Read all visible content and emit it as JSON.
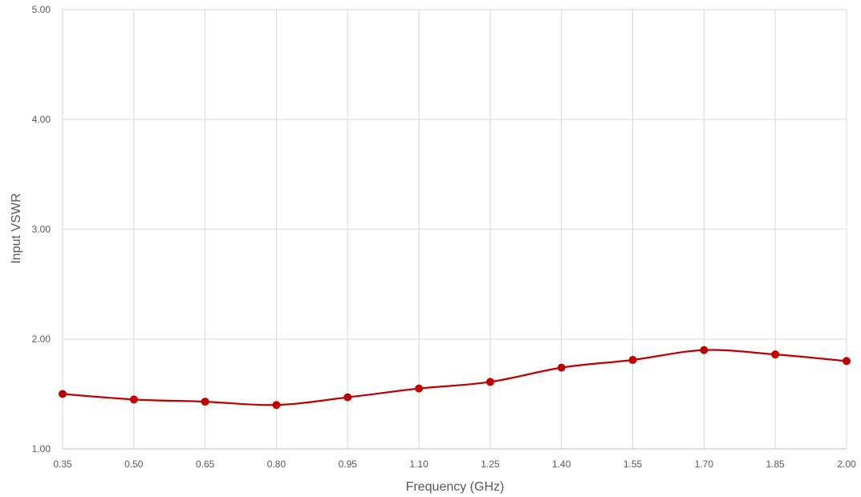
{
  "chart_data": {
    "type": "line",
    "title": "",
    "xlabel": "Frequency (GHz)",
    "ylabel": "Input VSWR",
    "x_tick_labels": [
      "0.35",
      "0.50",
      "0.65",
      "0.80",
      "0.95",
      "1.10",
      "1.25",
      "1.40",
      "1.55",
      "1.70",
      "1.85",
      "2.00"
    ],
    "y_tick_labels": [
      "1.00",
      "2.00",
      "3.00",
      "4.00",
      "5.00"
    ],
    "xlim": [
      0.35,
      2.0
    ],
    "ylim": [
      1.0,
      5.0
    ],
    "grid": true,
    "smooth": true,
    "series": [
      {
        "color": "#c00000",
        "x": [
          0.35,
          0.5,
          0.65,
          0.8,
          0.95,
          1.1,
          1.25,
          1.4,
          1.55,
          1.7,
          1.85,
          2.0
        ],
        "y": [
          1.5,
          1.45,
          1.43,
          1.4,
          1.47,
          1.55,
          1.61,
          1.74,
          1.81,
          1.9,
          1.86,
          1.8
        ]
      }
    ]
  }
}
